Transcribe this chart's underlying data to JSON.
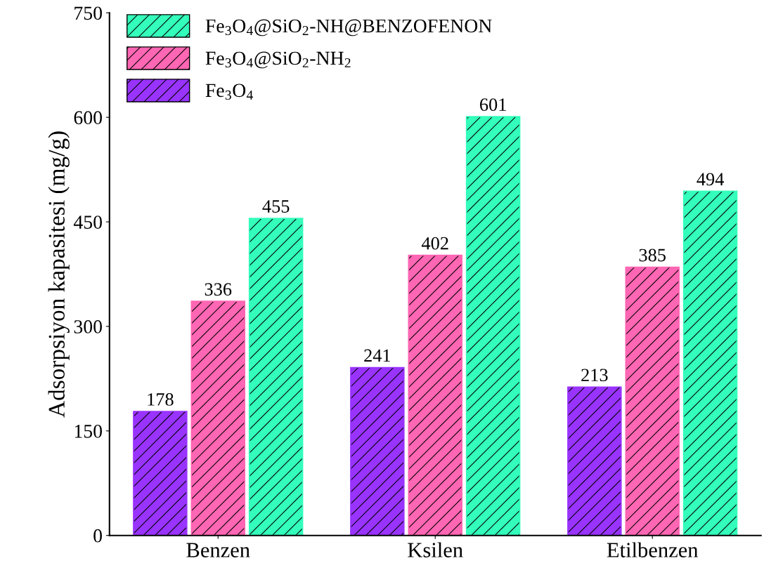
{
  "chart_data": {
    "type": "bar",
    "ylabel": "Adsorpsiyon kapasitesi (mg/g)",
    "categories": [
      "Benzen",
      "Ksilen",
      "Etilbenzen"
    ],
    "series": [
      {
        "name": "Fe$_{3}$O$_{4}$",
        "color": "#9933ff",
        "values": [
          178,
          241,
          213
        ]
      },
      {
        "name": "Fe$_{3}$O$_{4}$@SiO$_{2}$-NH$_{2}$",
        "color": "#ff66b3",
        "values": [
          336,
          402,
          385
        ]
      },
      {
        "name": "Fe$_{3}$O$_{4}$@SiO$_{2}$-NH@BENZOFENON",
        "color": "#33ffbb",
        "values": [
          455,
          601,
          494
        ]
      }
    ],
    "ylim": [
      0,
      750
    ],
    "yticks": [
      0,
      150,
      300,
      450,
      600,
      750
    ],
    "grid": false,
    "legend": "top left",
    "data_labels": true
  }
}
